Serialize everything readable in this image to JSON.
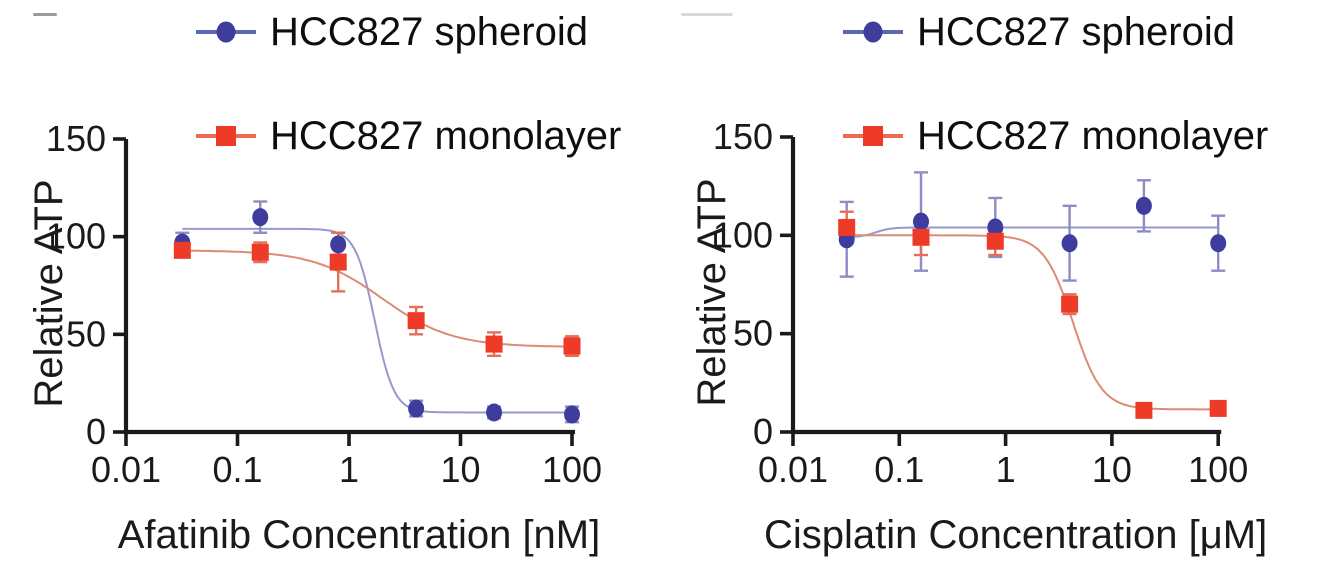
{
  "figure": {
    "y_axis_label": "Relative ATP",
    "text_color": "#1a1a1a",
    "background": "#ffffff"
  },
  "chart_data": [
    {
      "type": "scatter",
      "title": "",
      "xlabel": "Afatinib Concentration [nM]",
      "ylabel": "Relative ATP",
      "x_scale": "log",
      "x_ticks": [
        0.01,
        0.1,
        1,
        10,
        100
      ],
      "x_tick_labels": [
        "0.01",
        "0.1",
        "1",
        "10",
        "100"
      ],
      "y_ticks": [
        0,
        50,
        100,
        150
      ],
      "y_tick_labels": [
        "0",
        "50",
        "100",
        "150"
      ],
      "ylim": [
        0,
        150
      ],
      "grid": false,
      "legend_position": "top",
      "x": [
        0.032,
        0.16,
        0.8,
        4,
        20,
        100
      ],
      "series": [
        {
          "key": "spheroid",
          "name": "HCC827 spheroid",
          "marker": "circle",
          "color": "#3e3c9d",
          "line_color": "#9899cb",
          "error_color": "#8f8cc4",
          "legend_line_color": "#5a67b5",
          "values": [
            97,
            110,
            96,
            12,
            10,
            9
          ],
          "errors": [
            5,
            8,
            6,
            4,
            3,
            4
          ],
          "fit": {
            "top": 104,
            "bottom": 10,
            "ec50": 1.7,
            "hill": 5
          }
        },
        {
          "key": "monolayer",
          "name": "HCC827 monolayer",
          "marker": "square",
          "color": "#ee3b27",
          "line_color": "#dd8b76",
          "error_color": "#e4705b",
          "legend_line_color": "#f16b50",
          "values": [
            93,
            92,
            87,
            57,
            45,
            44
          ],
          "errors": [
            3,
            5,
            15,
            7,
            6,
            5
          ],
          "fit": {
            "top": 93,
            "bottom": 43.5,
            "ec50": 2.0,
            "hill": 1.4
          }
        }
      ]
    },
    {
      "type": "scatter",
      "title": "",
      "xlabel": "Cisplatin Concentration [μM]",
      "ylabel": "Relative ATP",
      "x_scale": "log",
      "x_ticks": [
        0.01,
        0.1,
        1,
        10,
        100
      ],
      "x_tick_labels": [
        "0.01",
        "0.1",
        "1",
        "10",
        "100"
      ],
      "y_ticks": [
        0,
        50,
        100,
        150
      ],
      "y_tick_labels": [
        "0",
        "50",
        "100",
        "150"
      ],
      "ylim": [
        0,
        150
      ],
      "grid": false,
      "legend_position": "top",
      "x": [
        0.032,
        0.16,
        0.8,
        4,
        20,
        100
      ],
      "series": [
        {
          "key": "spheroid",
          "name": "HCC827 spheroid",
          "marker": "circle",
          "color": "#3e3c9d",
          "line_color": "#9899cb",
          "error_color": "#8f8cc4",
          "legend_line_color": "#5a67b5",
          "values": [
            98,
            107,
            104,
            96,
            115,
            96
          ],
          "errors": [
            19,
            25,
            15,
            19,
            13,
            14
          ],
          "fit": {
            "top": 99,
            "bottom": 104,
            "ec50": 0.06,
            "hill": 6
          }
        },
        {
          "key": "monolayer",
          "name": "HCC827 monolayer",
          "marker": "square",
          "color": "#ee3b27",
          "line_color": "#dd8b76",
          "error_color": "#e4705b",
          "legend_line_color": "#f16b50",
          "values": [
            104,
            99,
            97,
            65,
            11,
            12
          ],
          "errors": [
            8,
            9,
            7,
            5,
            2,
            2
          ],
          "fit": {
            "top": 100,
            "bottom": 11.5,
            "ec50": 4.3,
            "hill": 3.2
          }
        }
      ]
    }
  ]
}
